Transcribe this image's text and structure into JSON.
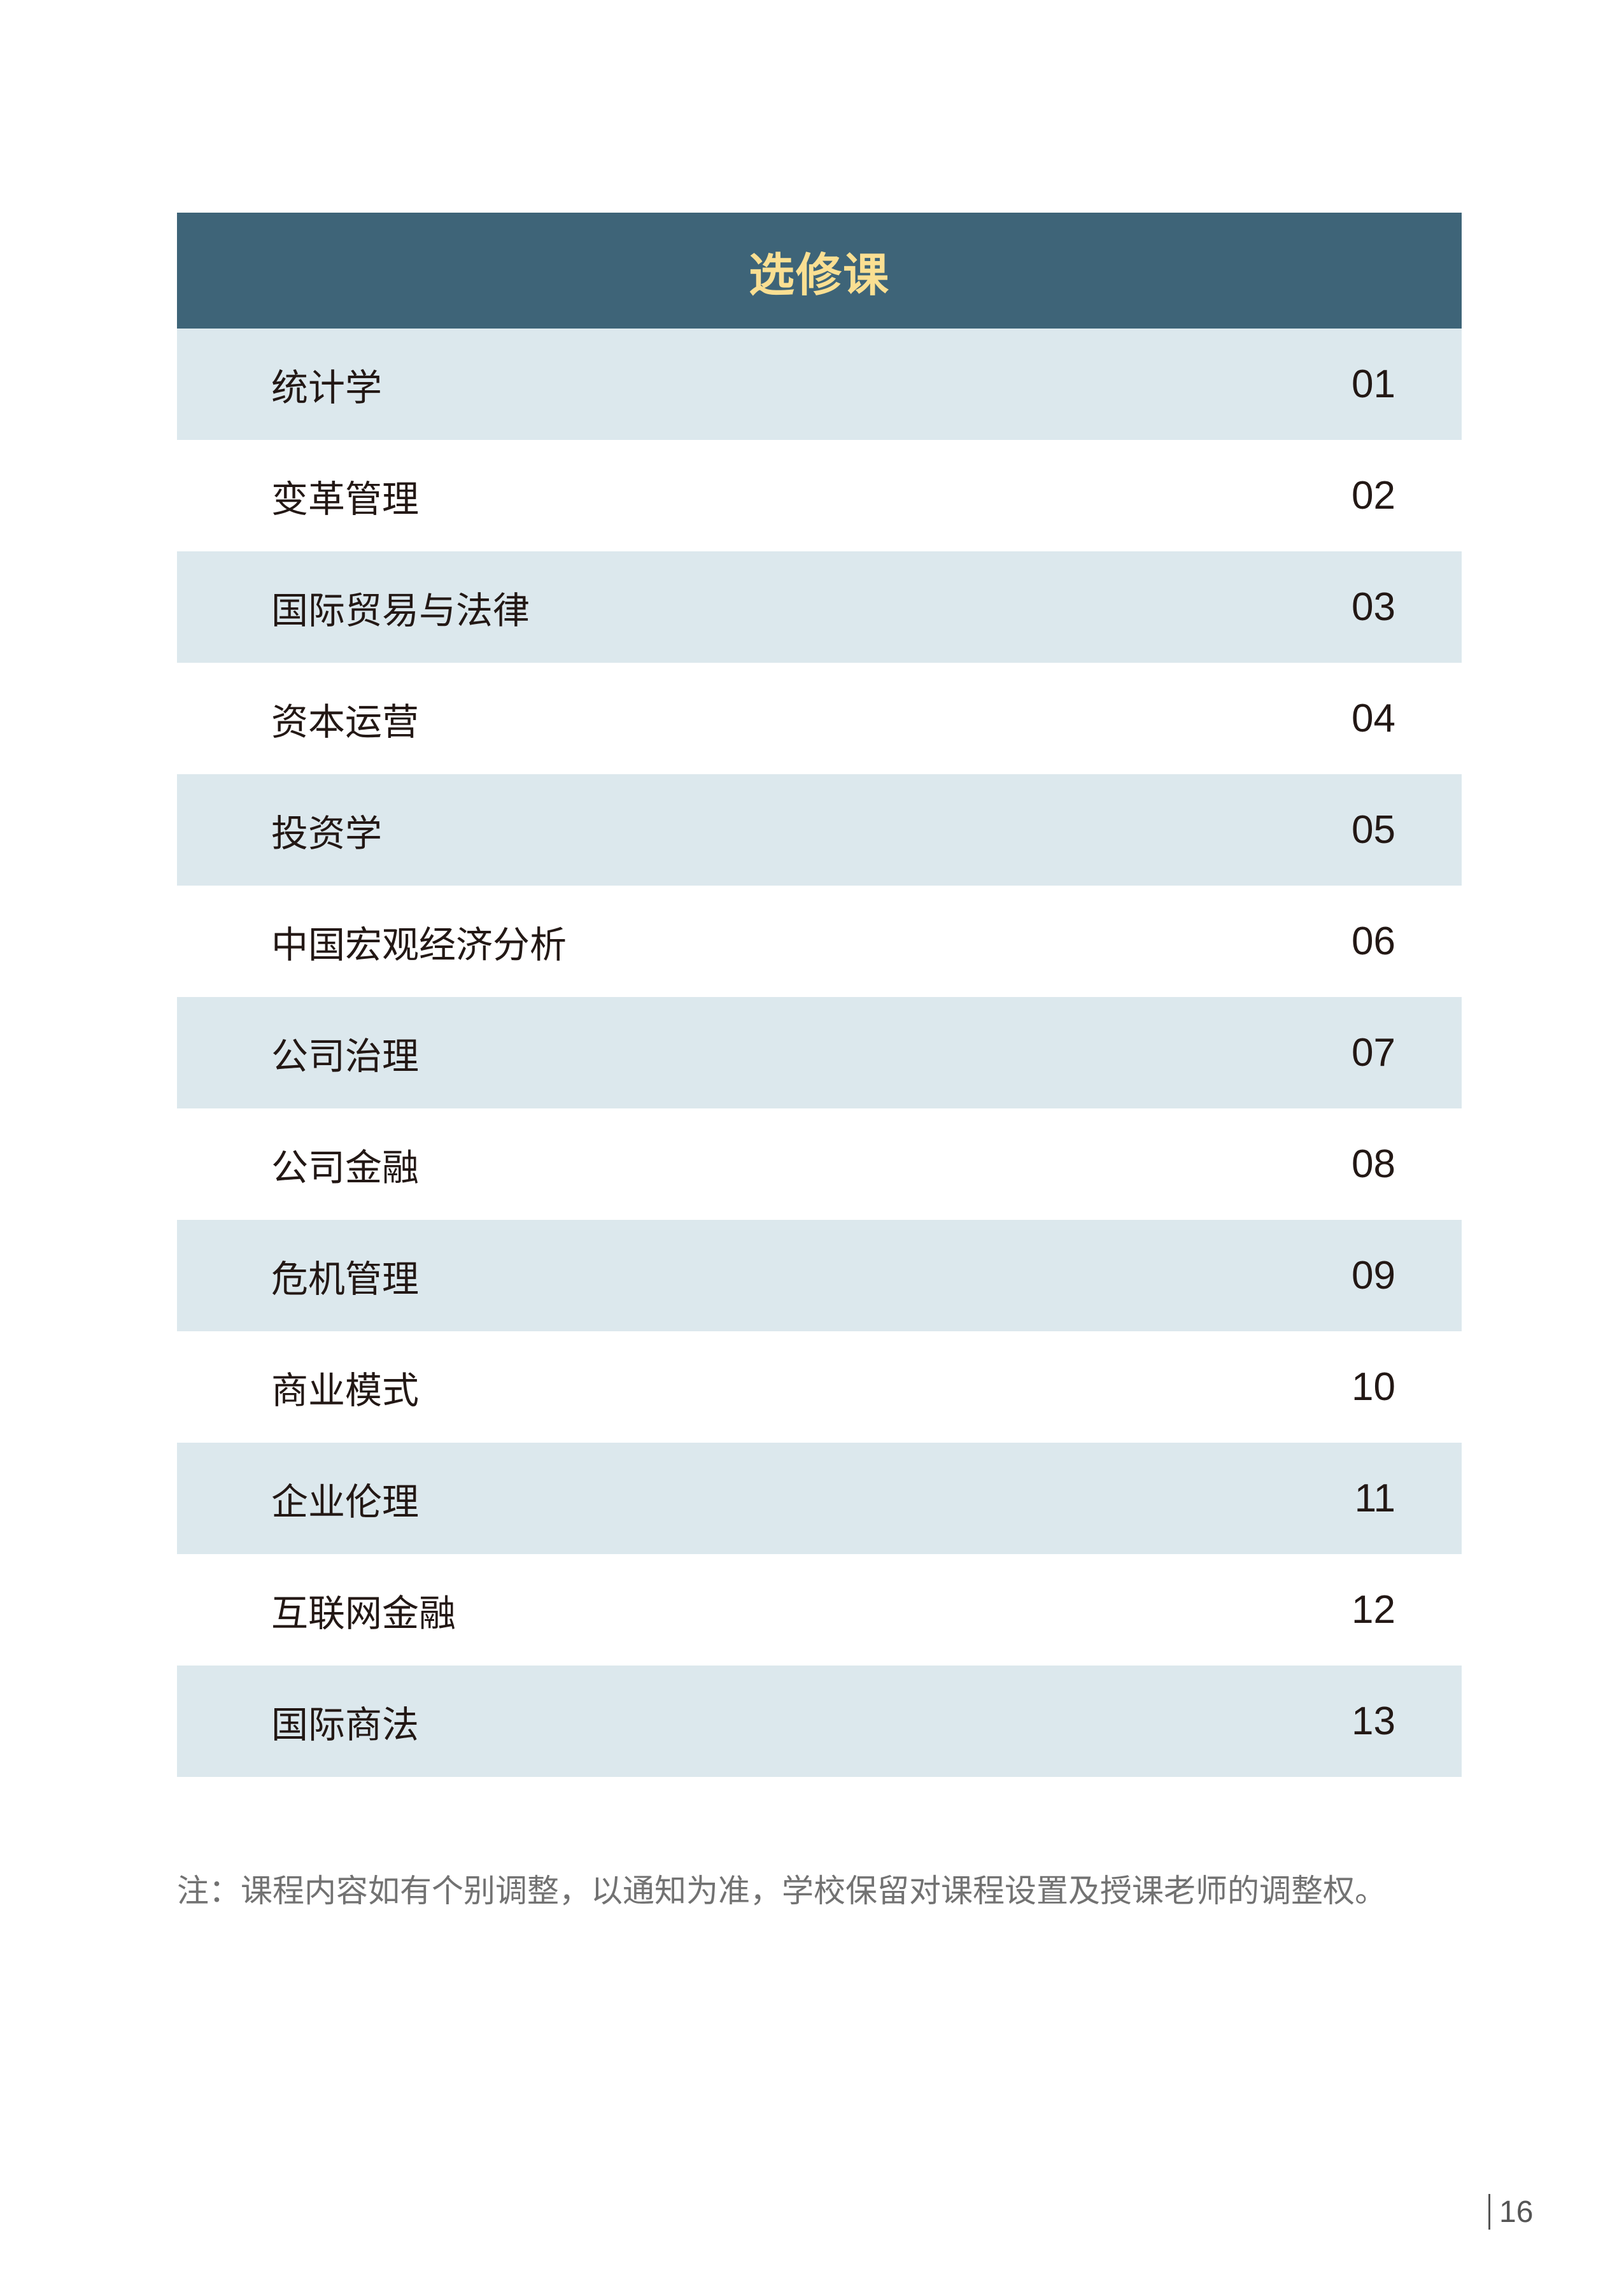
{
  "table": {
    "title": "选修课",
    "colors": {
      "header_bg": "#3E6478",
      "title": "#FADF92",
      "stripe": "#DCE8ED"
    },
    "rows": [
      {
        "name": "统计学",
        "num": "01"
      },
      {
        "name": "变革管理",
        "num": "02"
      },
      {
        "name": "国际贸易与法律",
        "num": "03"
      },
      {
        "name": "资本运营",
        "num": "04"
      },
      {
        "name": "投资学",
        "num": "05"
      },
      {
        "name": "中国宏观经济分析",
        "num": "06"
      },
      {
        "name": "公司治理",
        "num": "07"
      },
      {
        "name": "公司金融",
        "num": "08"
      },
      {
        "name": "危机管理",
        "num": "09"
      },
      {
        "name": "商业模式",
        "num": "10"
      },
      {
        "name": "企业伦理",
        "num": "11"
      },
      {
        "name": "互联网金融",
        "num": "12"
      },
      {
        "name": "国际商法",
        "num": "13"
      }
    ]
  },
  "note": "注：课程内容如有个别调整，以通知为准，学校保留对课程设置及授课老师的调整权。",
  "page_number": "16"
}
